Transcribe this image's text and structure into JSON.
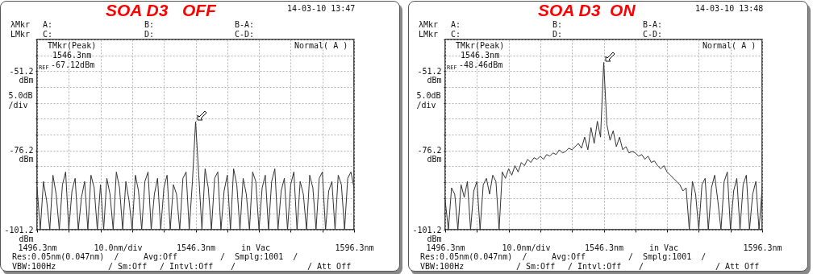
{
  "chart_data": [
    {
      "type": "line",
      "title": "SOA D3   OFF",
      "x": [
        1496.3,
        1497.3,
        1498.3,
        1499.3,
        1500.3,
        1501.3,
        1502.3,
        1503.3,
        1504.3,
        1505.3,
        1506.3,
        1507.3,
        1508.3,
        1509.3,
        1510.3,
        1511.3,
        1512.3,
        1513.3,
        1514.3,
        1515.3,
        1516.3,
        1517.3,
        1518.3,
        1519.3,
        1520.3,
        1521.3,
        1522.3,
        1523.3,
        1524.3,
        1525.3,
        1526.3,
        1527.3,
        1528.3,
        1529.3,
        1530.3,
        1531.3,
        1532.3,
        1533.3,
        1534.3,
        1535.3,
        1536.3,
        1537.3,
        1538.3,
        1539.3,
        1540.3,
        1541.3,
        1542.3,
        1543.3,
        1544.3,
        1545.3,
        1546.3,
        1547.3,
        1548.3,
        1549.3,
        1550.3,
        1551.3,
        1552.3,
        1553.3,
        1554.3,
        1555.3,
        1556.3,
        1557.3,
        1558.3,
        1559.3,
        1560.3,
        1561.3,
        1562.3,
        1563.3,
        1564.3,
        1565.3,
        1566.3,
        1567.3,
        1568.3,
        1569.3,
        1570.3,
        1571.3,
        1572.3,
        1573.3,
        1574.3,
        1575.3,
        1576.3,
        1577.3,
        1578.3,
        1579.3,
        1580.3,
        1581.3,
        1582.3,
        1583.3,
        1584.3,
        1585.3,
        1586.3,
        1587.3,
        1588.3,
        1589.3,
        1590.3,
        1591.3,
        1592.3,
        1593.3,
        1594.3,
        1595.3,
        1596.3
      ],
      "series": [
        {
          "color": "#333333",
          "values": [
            -88,
            -101.2,
            -86,
            -92,
            -101.2,
            -84,
            -90,
            -101.2,
            -87,
            -83,
            -101.2,
            -89,
            -85,
            -101.2,
            -91,
            -86,
            -101.2,
            -84,
            -88,
            -101.2,
            -87,
            -101.2,
            -85,
            -90,
            -101.2,
            -83,
            -88,
            -101.2,
            -86,
            -92,
            -101.2,
            -84,
            -89,
            -101.2,
            -86,
            -83,
            -101.2,
            -90,
            -85,
            -101.2,
            -88,
            -84,
            -101.2,
            -87,
            -90,
            -101.2,
            -85,
            -83,
            -101.2,
            -86,
            -67.12,
            -84,
            -101.2,
            -82,
            -88,
            -101.2,
            -85,
            -83,
            -101.2,
            -89,
            -84,
            -101.2,
            -82,
            -87,
            -101.2,
            -85,
            -90,
            -101.2,
            -83,
            -86,
            -101.2,
            -88,
            -84,
            -101.2,
            -86,
            -82,
            -101.2,
            -89,
            -85,
            -101.2,
            -87,
            -83,
            -101.2,
            -86,
            -90,
            -101.2,
            -84,
            -88,
            -101.2,
            -85,
            -83,
            -101.2,
            -89,
            -86,
            -101.2,
            -84,
            -87,
            -101.2,
            -85,
            -83,
            -88
          ]
        }
      ],
      "xlim": [
        1496.3,
        1596.3
      ],
      "xticks": [
        {
          "value": 1496.3,
          "label": "1496.3nm"
        },
        {
          "value": 1506.3,
          "label": null
        },
        {
          "value": 1516.3,
          "label": null
        },
        {
          "value": 1526.3,
          "label": null
        },
        {
          "value": 1536.3,
          "label": null
        },
        {
          "value": 1546.3,
          "label": "1546.3nm"
        },
        {
          "value": 1556.3,
          "label": null
        },
        {
          "value": 1566.3,
          "label": null
        },
        {
          "value": 1576.3,
          "label": null
        },
        {
          "value": 1586.3,
          "label": null
        },
        {
          "value": 1596.3,
          "label": "1596.3nm"
        }
      ],
      "ylim": [
        -101.2,
        -41.2
      ],
      "yticks": [
        {
          "value": -101.2,
          "label": "-101.2\ndBm"
        },
        {
          "value": -96.2,
          "label": null
        },
        {
          "value": -91.2,
          "label": null
        },
        {
          "value": -86.2,
          "label": null
        },
        {
          "value": -81.2,
          "label": null
        },
        {
          "value": -76.2,
          "label": "-76.2\ndBm"
        },
        {
          "value": -71.2,
          "label": null
        },
        {
          "value": -66.2,
          "label": null
        },
        {
          "value": -61.2,
          "label": null
        },
        {
          "value": -56.2,
          "label": null
        },
        {
          "value": -51.2,
          "label": "-51.2\ndBm"
        },
        {
          "value": -46.2,
          "label": null
        },
        {
          "value": -41.2,
          "label": null
        }
      ],
      "grid": true,
      "xlabel": "10.0nm/div",
      "ylabel": "5.0dB\n/div",
      "annotations": [
        "14-03-10 13:47",
        "λMkr",
        "A:",
        "B:",
        "B-A:",
        "LMkr",
        "C:",
        "D:",
        "C-D:",
        "TMkr(Peak)",
        "1546.3nm",
        "REF",
        "-67.12dBm",
        "Normal( A )",
        "in Vac",
        "Res:0.05nm(0.047nm)  /",
        "Avg:Off",
        "/  Smplg:1001  /",
        "VBW:100Hz",
        "/ Sm:Off",
        "/ Intvl:Off",
        "/",
        "/ Att Off"
      ]
    },
    {
      "type": "line",
      "title": "SOA D3  ON",
      "x": [
        1496.3,
        1497.3,
        1498.3,
        1499.3,
        1500.3,
        1501.3,
        1502.3,
        1503.3,
        1504.3,
        1505.3,
        1506.3,
        1507.3,
        1508.3,
        1509.3,
        1510.3,
        1511.3,
        1512.3,
        1513.3,
        1514.3,
        1515.3,
        1516.3,
        1517.3,
        1518.3,
        1519.3,
        1520.3,
        1521.3,
        1522.3,
        1523.3,
        1524.3,
        1525.3,
        1526.3,
        1527.3,
        1528.3,
        1529.3,
        1530.3,
        1531.3,
        1532.3,
        1533.3,
        1534.3,
        1535.3,
        1536.3,
        1537.3,
        1538.3,
        1539.3,
        1540.3,
        1541.3,
        1542.3,
        1543.3,
        1544.3,
        1545.3,
        1546.3,
        1547.3,
        1548.3,
        1549.3,
        1550.3,
        1551.3,
        1552.3,
        1553.3,
        1554.3,
        1555.3,
        1556.3,
        1557.3,
        1558.3,
        1559.3,
        1560.3,
        1561.3,
        1562.3,
        1563.3,
        1564.3,
        1565.3,
        1566.3,
        1567.3,
        1568.3,
        1569.3,
        1570.3,
        1571.3,
        1572.3,
        1573.3,
        1574.3,
        1575.3,
        1576.3,
        1577.3,
        1578.3,
        1579.3,
        1580.3,
        1581.3,
        1582.3,
        1583.3,
        1584.3,
        1585.3,
        1586.3,
        1587.3,
        1588.3,
        1589.3,
        1590.3,
        1591.3,
        1592.3,
        1593.3,
        1594.3,
        1595.3,
        1596.3
      ],
      "series": [
        {
          "color": "#333333",
          "values": [
            -92,
            -101.2,
            -88,
            -90,
            -101.2,
            -87,
            -91,
            -86,
            -101.2,
            -89,
            -86,
            -101.2,
            -87,
            -85,
            -90,
            -84,
            -86,
            -101.2,
            -83,
            -85,
            -82,
            -84,
            -81,
            -83,
            -80,
            -81,
            -79,
            -80,
            -78.5,
            -79,
            -78,
            -79,
            -77.5,
            -78,
            -77,
            -77.5,
            -76,
            -77,
            -76.5,
            -75.5,
            -76,
            -75,
            -74,
            -75.5,
            -72,
            -76,
            -69,
            -74,
            -67,
            -72,
            -48.46,
            -68,
            -73,
            -70,
            -75,
            -72,
            -76,
            -75,
            -77,
            -76.5,
            -77,
            -78,
            -77.5,
            -79,
            -78,
            -80,
            -79.5,
            -81,
            -82,
            -81,
            -83,
            -84,
            -85,
            -86,
            -87,
            -89,
            -88,
            -101.2,
            -86,
            -90,
            -101.2,
            -87,
            -85,
            -101.2,
            -88,
            -84,
            -92,
            -101.2,
            -86,
            -83,
            -101.2,
            -89,
            -85,
            -101.2,
            -87,
            -84,
            -101.2,
            -90,
            -86,
            -101.2,
            -88
          ]
        }
      ],
      "xlim": [
        1496.3,
        1596.3
      ],
      "xticks": [
        {
          "value": 1496.3,
          "label": "1496.3nm"
        },
        {
          "value": 1506.3,
          "label": null
        },
        {
          "value": 1516.3,
          "label": null
        },
        {
          "value": 1526.3,
          "label": null
        },
        {
          "value": 1536.3,
          "label": null
        },
        {
          "value": 1546.3,
          "label": "1546.3nm"
        },
        {
          "value": 1556.3,
          "label": null
        },
        {
          "value": 1566.3,
          "label": null
        },
        {
          "value": 1576.3,
          "label": null
        },
        {
          "value": 1586.3,
          "label": null
        },
        {
          "value": 1596.3,
          "label": "1596.3nm"
        }
      ],
      "ylim": [
        -101.2,
        -41.2
      ],
      "yticks": [
        {
          "value": -101.2,
          "label": "-101.2\ndBm"
        },
        {
          "value": -96.2,
          "label": null
        },
        {
          "value": -91.2,
          "label": null
        },
        {
          "value": -86.2,
          "label": null
        },
        {
          "value": -81.2,
          "label": null
        },
        {
          "value": -76.2,
          "label": "-76.2\ndBm"
        },
        {
          "value": -71.2,
          "label": null
        },
        {
          "value": -66.2,
          "label": null
        },
        {
          "value": -61.2,
          "label": null
        },
        {
          "value": -56.2,
          "label": null
        },
        {
          "value": -51.2,
          "label": "-51.2\ndBm"
        },
        {
          "value": -46.2,
          "label": null
        },
        {
          "value": -41.2,
          "label": null
        }
      ],
      "grid": true,
      "xlabel": "10.0nm/div",
      "ylabel": "5.0dB\n/div",
      "annotations": [
        "14-03-10 13:48",
        "λMkr",
        "A:",
        "B:",
        "B-A:",
        "LMkr",
        "C:",
        "D:",
        "C-D:",
        "TMkr(Peak)",
        "1546.3nm",
        "REF",
        "-48.46dBm",
        "Normal( A )",
        "in Vac",
        "Res:0.05nm(0.047nm)  /",
        "Avg:Off",
        "/  Smplg:1001  /",
        "VBW:100Hz",
        "/ Sm:Off",
        "/ Intvl:Off",
        "/",
        "/ Att Off"
      ]
    }
  ]
}
